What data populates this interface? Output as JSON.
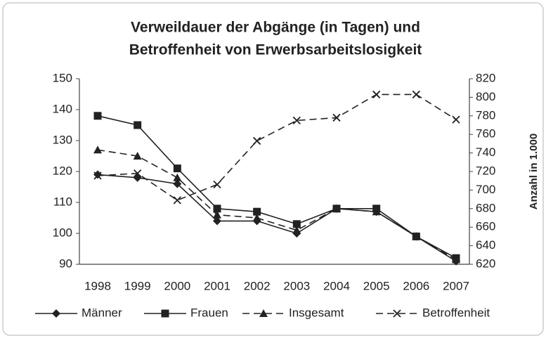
{
  "chart_data": {
    "type": "line",
    "title": [
      "Verweildauer der Abgänge (in Tagen) und",
      "Betroffenheit von Erwerbsarbeitslosigkeit"
    ],
    "y2label": "Anzahl in 1.000",
    "categories": [
      "1998",
      "1999",
      "2000",
      "2001",
      "2002",
      "2003",
      "2004",
      "2005",
      "2006",
      "2007"
    ],
    "ylim": [
      90,
      150
    ],
    "yticks": [
      90,
      100,
      110,
      120,
      130,
      140,
      150
    ],
    "y2lim": [
      620,
      820
    ],
    "y2ticks": [
      620,
      640,
      660,
      680,
      700,
      720,
      740,
      760,
      780,
      800,
      820
    ],
    "legend": "bottom",
    "series": [
      {
        "name": "Männer",
        "color": "#222222",
        "marker": "diamond",
        "dash": "solid",
        "axis": "y",
        "values": [
          119,
          118,
          116,
          104,
          104,
          100,
          108,
          107,
          99,
          91
        ]
      },
      {
        "name": "Frauen",
        "color": "#222222",
        "marker": "square",
        "dash": "solid",
        "axis": "y",
        "values": [
          138,
          135,
          121,
          108,
          107,
          103,
          108,
          108,
          99,
          92
        ]
      },
      {
        "name": "Insgesamt",
        "color": "#222222",
        "marker": "triangle",
        "dash": "dashed",
        "axis": "y",
        "values": [
          127,
          125,
          118,
          106,
          105,
          101,
          108,
          107,
          99,
          91.5
        ]
      },
      {
        "name": "Betroffenheit",
        "color": "#222222",
        "marker": "x",
        "dash": "dashed",
        "axis": "y2",
        "values": [
          715.5,
          718,
          689,
          706,
          753,
          775,
          778,
          803,
          803,
          776
        ]
      }
    ]
  }
}
